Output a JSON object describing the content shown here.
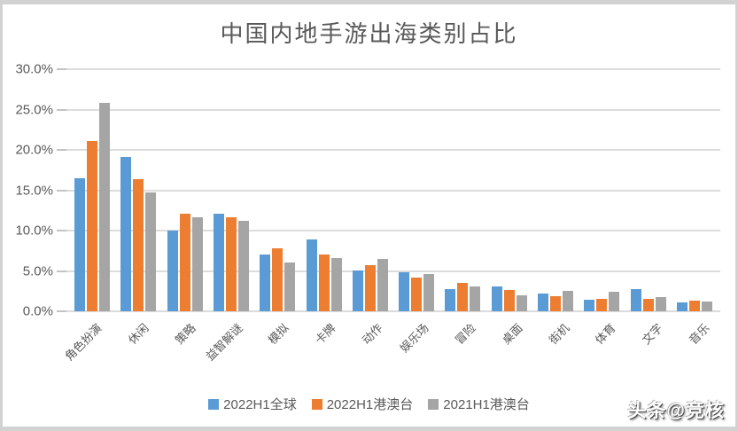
{
  "page": {
    "watermark": "头条@竞核"
  },
  "colors": {
    "grid": "#dcdcdc",
    "axis_text": "#595959",
    "frame_border": "#d2d2d2",
    "series_blue": "#5B9BD5",
    "series_orange": "#ED7D31",
    "series_gray": "#A5A5A5"
  },
  "chart_data": {
    "type": "bar",
    "title": "中国内地手游出海类别占比",
    "categories": [
      "角色扮演",
      "休闲",
      "策略",
      "益智解谜",
      "模拟",
      "卡牌",
      "动作",
      "娱乐场",
      "冒险",
      "桌面",
      "街机",
      "体育",
      "文字",
      "音乐"
    ],
    "series": [
      {
        "name": "2022H1全球",
        "color": "#5B9BD5",
        "values": [
          16.5,
          19.1,
          10.0,
          12.1,
          7.0,
          8.9,
          5.1,
          4.8,
          2.8,
          3.1,
          2.2,
          1.4,
          2.7,
          1.1
        ]
      },
      {
        "name": "2022H1港澳台",
        "color": "#ED7D31",
        "values": [
          21.1,
          16.4,
          12.1,
          11.6,
          7.8,
          7.0,
          5.7,
          4.2,
          3.5,
          2.6,
          1.9,
          1.5,
          1.5,
          1.3
        ]
      },
      {
        "name": "2021H1港澳台",
        "color": "#A5A5A5",
        "values": [
          25.8,
          14.7,
          11.6,
          11.2,
          6.0,
          6.6,
          6.5,
          4.6,
          3.1,
          2.0,
          2.5,
          2.4,
          1.8,
          1.2
        ]
      }
    ],
    "xlabel": "",
    "ylabel": "",
    "ylim": [
      0,
      30
    ],
    "ytick_labels": [
      "30.0%",
      "25.0%",
      "20.0%",
      "15.0%",
      "10.0%",
      "5.0%",
      "0.0%"
    ],
    "grid": true,
    "legend_position": "bottom",
    "xtick_rotation": 45
  }
}
